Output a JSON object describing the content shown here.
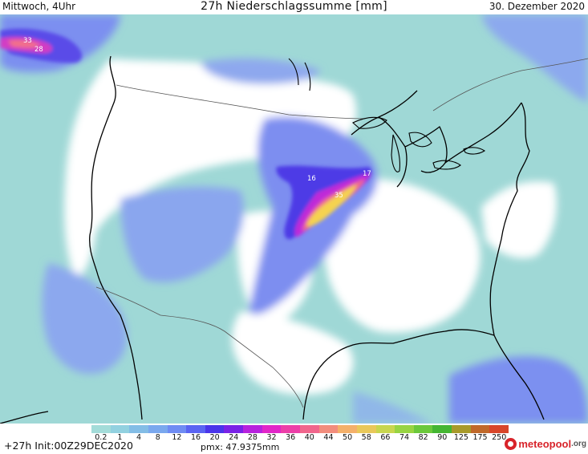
{
  "header": {
    "left": "Mittwoch, 4Uhr",
    "title": "27h Niederschlagssumme [mm]",
    "right": "30. Dezember 2020"
  },
  "legend": {
    "ticks": [
      "0.2",
      "1",
      "4",
      "8",
      "12",
      "16",
      "20",
      "24",
      "28",
      "32",
      "36",
      "40",
      "44",
      "50",
      "58",
      "66",
      "74",
      "82",
      "90",
      "125",
      "175",
      "250"
    ],
    "colors": [
      "#a3dcd9",
      "#92d1e0",
      "#83bde6",
      "#7aa8ee",
      "#6f8cf3",
      "#5a64f2",
      "#4a35ea",
      "#7a22e6",
      "#b722dd",
      "#e126c8",
      "#ec3fa8",
      "#f0668c",
      "#f28d7d",
      "#f4b06a",
      "#e9c85a",
      "#c8d64e",
      "#98d442",
      "#6bc83b",
      "#45b632",
      "#a89a2a",
      "#c0692a",
      "#d8462a"
    ]
  },
  "map_labels": [
    {
      "text": "33",
      "name": "max-label-pacific"
    },
    {
      "text": "28",
      "name": "max-label-pacific-2"
    },
    {
      "text": "16",
      "name": "max-label-kansas"
    },
    {
      "text": "17",
      "name": "max-label-iowa"
    },
    {
      "text": "35",
      "name": "max-label-oklahoma"
    }
  ],
  "footer": {
    "init": "+27h Init:00Z29DEC2020",
    "pmx": "pmx: 47.9375mm"
  },
  "logo": {
    "name": "meteopool",
    "tld": ".org"
  }
}
